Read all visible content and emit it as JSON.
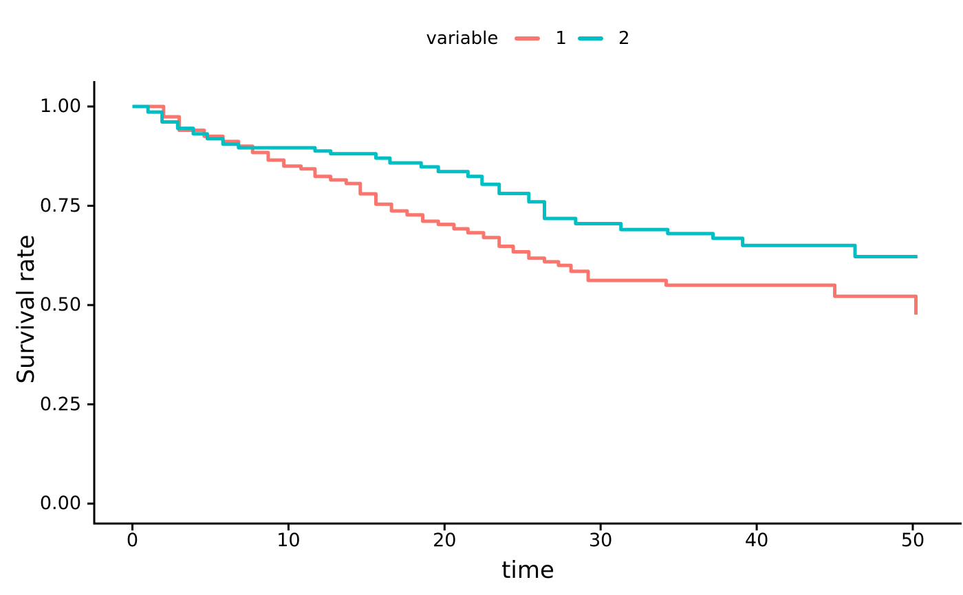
{
  "figure": {
    "background": "#FFFFFF",
    "legend": {
      "title": "variable",
      "position": "top",
      "items": [
        {
          "label": "1",
          "color": "#F8766D"
        },
        {
          "label": "2",
          "color": "#00BFC4"
        }
      ]
    },
    "x_axis": {
      "label": "time",
      "tick_labels": [
        "0",
        "10",
        "20",
        "30",
        "40",
        "50"
      ],
      "tick_values": [
        0,
        10,
        20,
        30,
        40,
        50
      ]
    },
    "y_axis": {
      "label": "Survival rate",
      "tick_labels": [
        "0.00",
        "0.25",
        "0.50",
        "0.75",
        "1.00"
      ],
      "tick_values": [
        0,
        0.25,
        0.5,
        0.75,
        1.0
      ]
    },
    "axis_color": "#000000",
    "text_color": "#000000"
  },
  "chart_data": {
    "type": "line",
    "subtype": "kaplan-meier-step",
    "title": "",
    "xlabel": "time",
    "ylabel": "Survival rate",
    "xlim": [
      -2.4,
      53.1
    ],
    "ylim": [
      -0.05,
      1.055
    ],
    "grid": false,
    "legend_position": "top",
    "legend_title": "variable",
    "series": [
      {
        "name": "1",
        "color": "#F8766D",
        "end_time": 50.2,
        "points": [
          [
            0,
            1.0
          ],
          [
            2.0,
            0.974
          ],
          [
            3.0,
            0.94
          ],
          [
            4.6,
            0.925
          ],
          [
            5.8,
            0.912
          ],
          [
            6.8,
            0.9
          ],
          [
            7.7,
            0.884
          ],
          [
            8.7,
            0.865
          ],
          [
            9.7,
            0.85
          ],
          [
            10.8,
            0.843
          ],
          [
            11.7,
            0.824
          ],
          [
            12.7,
            0.815
          ],
          [
            13.7,
            0.806
          ],
          [
            14.6,
            0.78
          ],
          [
            15.6,
            0.754
          ],
          [
            16.6,
            0.737
          ],
          [
            17.6,
            0.727
          ],
          [
            18.6,
            0.711
          ],
          [
            19.6,
            0.703
          ],
          [
            20.6,
            0.692
          ],
          [
            21.5,
            0.682
          ],
          [
            22.5,
            0.67
          ],
          [
            23.5,
            0.648
          ],
          [
            24.4,
            0.634
          ],
          [
            25.4,
            0.618
          ],
          [
            26.4,
            0.609
          ],
          [
            27.3,
            0.6
          ],
          [
            28.1,
            0.585
          ],
          [
            29.2,
            0.562
          ],
          [
            34.2,
            0.55
          ],
          [
            45.0,
            0.522
          ],
          [
            50.2,
            0.476
          ]
        ]
      },
      {
        "name": "2",
        "color": "#00BFC4",
        "end_time": 50.3,
        "points": [
          [
            0,
            1.0
          ],
          [
            1.0,
            0.986
          ],
          [
            1.9,
            0.961
          ],
          [
            2.9,
            0.945
          ],
          [
            3.9,
            0.931
          ],
          [
            4.8,
            0.919
          ],
          [
            5.8,
            0.905
          ],
          [
            6.8,
            0.896
          ],
          [
            11.7,
            0.888
          ],
          [
            12.7,
            0.881
          ],
          [
            15.6,
            0.87
          ],
          [
            16.5,
            0.858
          ],
          [
            18.5,
            0.848
          ],
          [
            19.6,
            0.836
          ],
          [
            21.5,
            0.824
          ],
          [
            22.4,
            0.804
          ],
          [
            23.5,
            0.781
          ],
          [
            25.4,
            0.76
          ],
          [
            26.4,
            0.718
          ],
          [
            28.4,
            0.705
          ],
          [
            31.3,
            0.69
          ],
          [
            34.3,
            0.68
          ],
          [
            37.2,
            0.668
          ],
          [
            39.1,
            0.65
          ],
          [
            46.3,
            0.622
          ]
        ]
      }
    ]
  }
}
